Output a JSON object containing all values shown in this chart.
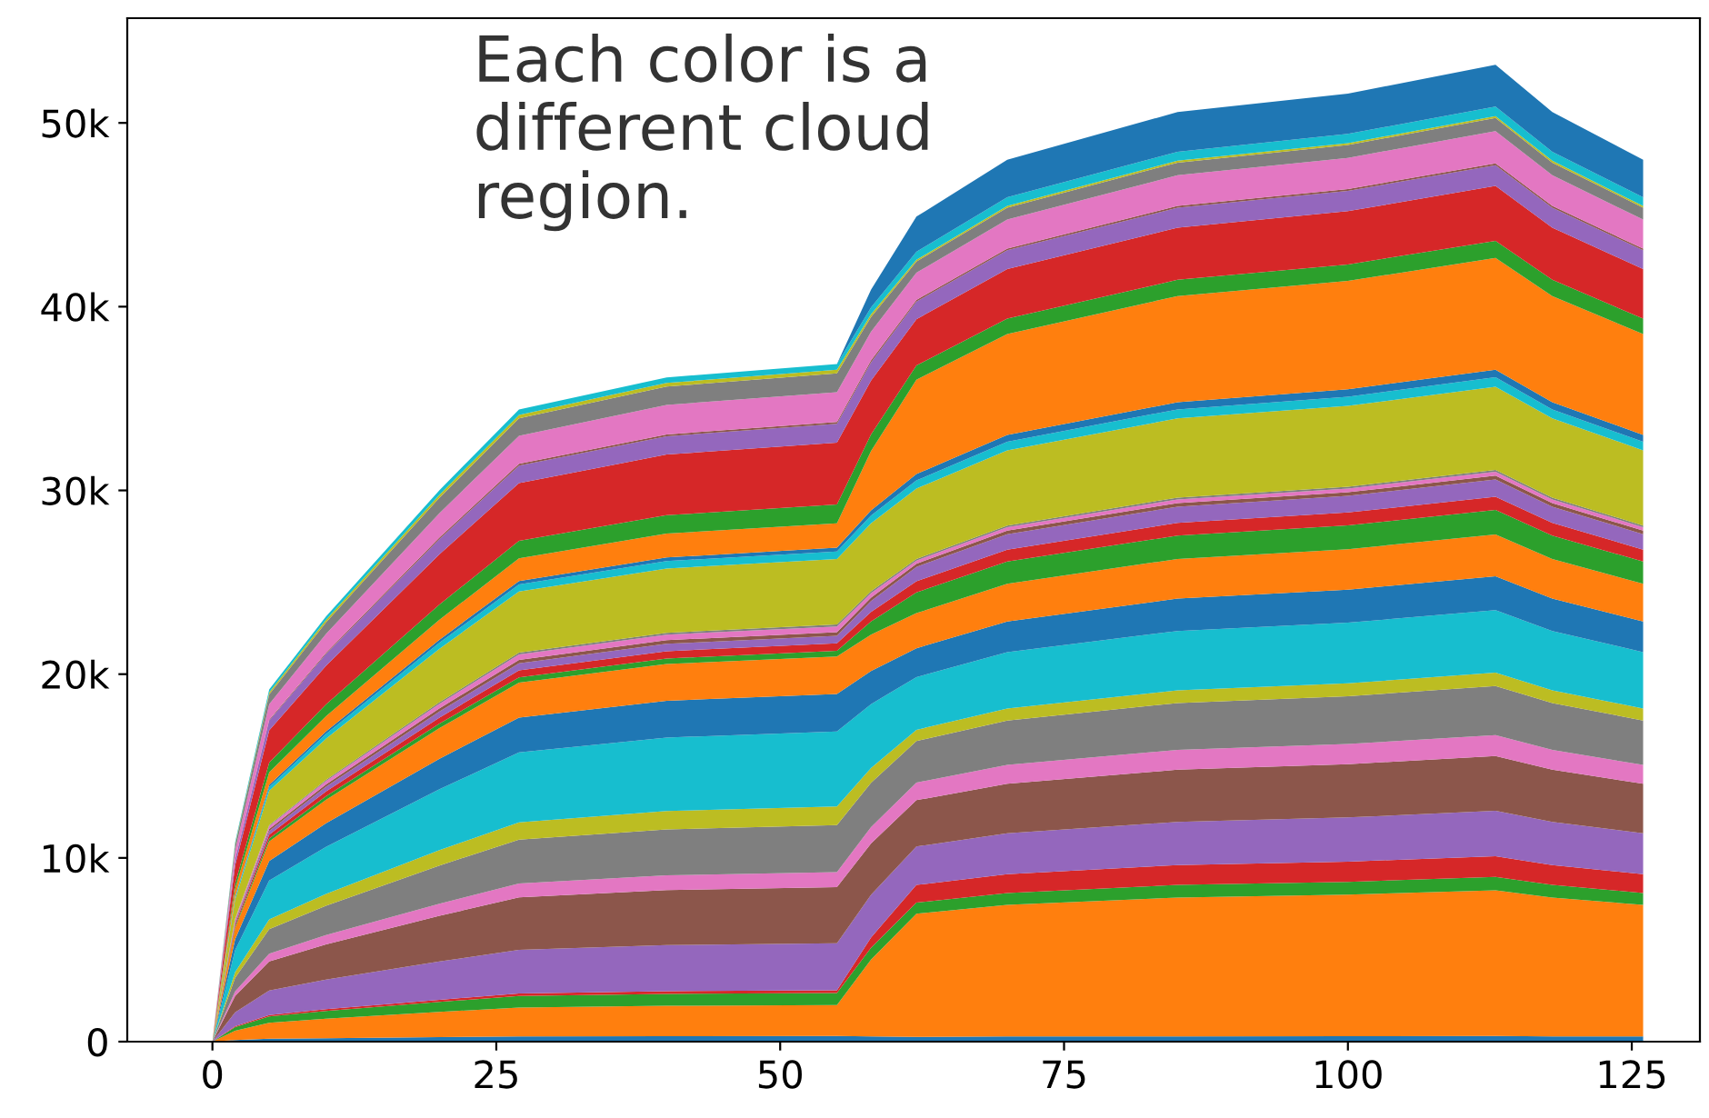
{
  "chart_data": {
    "type": "area",
    "stacked": true,
    "annotations": [
      "Each color is a\ndifferent cloud\nregion."
    ],
    "x": [
      0,
      2,
      5,
      10,
      20,
      27,
      40,
      55,
      58,
      62,
      70,
      85,
      100,
      113,
      118,
      126
    ],
    "xlim": [
      -7.5,
      131
    ],
    "xticks": [
      0,
      25,
      50,
      75,
      100,
      125
    ],
    "ylim": [
      0,
      55700
    ],
    "yticks": [
      {
        "value": 0,
        "label": "0"
      },
      {
        "value": 10000,
        "label": "10k"
      },
      {
        "value": 20000,
        "label": "20k"
      },
      {
        "value": 30000,
        "label": "30k"
      },
      {
        "value": 40000,
        "label": "40k"
      },
      {
        "value": 50000,
        "label": "50k"
      }
    ],
    "grid": false,
    "series": [
      {
        "color": "#1f77b4",
        "values": [
          0,
          90,
          160,
          190,
          250,
          290,
          300,
          310,
          280,
          260,
          280,
          290,
          300,
          310,
          290,
          280
        ]
      },
      {
        "color": "#ff7f0e",
        "values": [
          0,
          500,
          870,
          1060,
          1370,
          1570,
          1650,
          1680,
          4190,
          6700,
          7160,
          7550,
          7700,
          7930,
          7550,
          7160
        ]
      },
      {
        "color": "#2ca02c",
        "values": [
          0,
          200,
          340,
          420,
          540,
          620,
          650,
          660,
          640,
          610,
          650,
          690,
          700,
          720,
          690,
          650
        ]
      },
      {
        "color": "#d62728",
        "values": [
          0,
          50,
          80,
          100,
          120,
          140,
          150,
          150,
          560,
          960,
          1020,
          1080,
          1100,
          1130,
          1080,
          1020
        ]
      },
      {
        "color": "#9467bd",
        "values": [
          0,
          750,
          1330,
          1600,
          2080,
          2380,
          2500,
          2550,
          2320,
          2090,
          2230,
          2350,
          2400,
          2470,
          2350,
          2230
        ]
      },
      {
        "color": "#8c564b",
        "values": [
          0,
          900,
          1590,
          1920,
          2490,
          2850,
          3000,
          3060,
          2790,
          2520,
          2700,
          2840,
          2900,
          2990,
          2840,
          2700
        ]
      },
      {
        "color": "#e377c2",
        "values": [
          0,
          240,
          420,
          510,
          660,
          760,
          800,
          820,
          890,
          960,
          1020,
          1080,
          1100,
          1130,
          1080,
          1020
        ]
      },
      {
        "color": "#7f7f7f",
        "values": [
          0,
          750,
          1330,
          1600,
          2080,
          2380,
          2500,
          2550,
          2410,
          2260,
          2420,
          2550,
          2600,
          2680,
          2550,
          2420
        ]
      },
      {
        "color": "#bcbd22",
        "values": [
          0,
          300,
          530,
          640,
          830,
          950,
          1000,
          1020,
          810,
          610,
          650,
          690,
          700,
          720,
          690,
          650
        ]
      },
      {
        "color": "#17becf",
        "values": [
          0,
          1200,
          2120,
          2560,
          3320,
          3800,
          4000,
          4080,
          3480,
          2870,
          3070,
          3230,
          3300,
          3400,
          3230,
          3070
        ]
      },
      {
        "color": "#1f77b4",
        "values": [
          0,
          600,
          1060,
          1280,
          1660,
          1900,
          2000,
          2040,
          1800,
          1570,
          1670,
          1760,
          1800,
          1850,
          1760,
          1670
        ]
      },
      {
        "color": "#ff7f0e",
        "values": [
          0,
          600,
          1060,
          1280,
          1660,
          1900,
          2000,
          2040,
          1980,
          1910,
          2050,
          2160,
          2200,
          2270,
          2160,
          2050
        ]
      },
      {
        "color": "#2ca02c",
        "values": [
          0,
          90,
          160,
          190,
          250,
          290,
          300,
          310,
          720,
          1130,
          1210,
          1270,
          1300,
          1340,
          1270,
          1210
        ]
      },
      {
        "color": "#d62728",
        "values": [
          0,
          120,
          210,
          260,
          330,
          380,
          400,
          410,
          510,
          610,
          650,
          690,
          700,
          720,
          690,
          650
        ]
      },
      {
        "color": "#9467bd",
        "values": [
          0,
          120,
          210,
          260,
          330,
          380,
          400,
          410,
          600,
          780,
          840,
          880,
          900,
          930,
          880,
          840
        ]
      },
      {
        "color": "#8c564b",
        "values": [
          0,
          60,
          110,
          130,
          170,
          190,
          200,
          200,
          190,
          170,
          190,
          200,
          200,
          210,
          200,
          190
        ]
      },
      {
        "color": "#e377c2",
        "values": [
          0,
          90,
          160,
          190,
          250,
          290,
          300,
          310,
          240,
          170,
          190,
          200,
          200,
          210,
          200,
          190
        ]
      },
      {
        "color": "#7f7f7f",
        "values": [
          0,
          30,
          50,
          60,
          80,
          100,
          100,
          100,
          100,
          90,
          90,
          100,
          100,
          100,
          100,
          90
        ]
      },
      {
        "color": "#bcbd22",
        "values": [
          0,
          1050,
          1860,
          2240,
          2910,
          3330,
          3500,
          3570,
          3700,
          3830,
          4090,
          4310,
          4400,
          4530,
          4310,
          4090
        ]
      },
      {
        "color": "#17becf",
        "values": [
          0,
          120,
          210,
          260,
          330,
          380,
          400,
          410,
          420,
          440,
          470,
          490,
          500,
          520,
          490,
          470
        ]
      },
      {
        "color": "#1f77b4",
        "values": [
          0,
          60,
          110,
          130,
          170,
          190,
          200,
          200,
          280,
          350,
          370,
          390,
          400,
          410,
          390,
          370
        ]
      },
      {
        "color": "#ff7f0e",
        "values": [
          0,
          390,
          690,
          830,
          1080,
          1240,
          1300,
          1330,
          3230,
          5130,
          5490,
          5780,
          5900,
          6080,
          5780,
          5490
        ]
      },
      {
        "color": "#2ca02c",
        "values": [
          0,
          300,
          530,
          640,
          830,
          950,
          1000,
          1020,
          900,
          780,
          840,
          880,
          900,
          930,
          880,
          840
        ]
      },
      {
        "color": "#d62728",
        "values": [
          0,
          990,
          1750,
          2110,
          2740,
          3140,
          3300,
          3370,
          2940,
          2520,
          2700,
          2840,
          2900,
          2990,
          2840,
          2700
        ]
      },
      {
        "color": "#9467bd",
        "values": [
          0,
          300,
          530,
          640,
          830,
          950,
          1000,
          1020,
          990,
          960,
          1020,
          1080,
          1100,
          1130,
          1080,
          1020
        ]
      },
      {
        "color": "#8c564b",
        "values": [
          0,
          30,
          50,
          60,
          80,
          100,
          100,
          100,
          100,
          90,
          90,
          100,
          100,
          100,
          100,
          90
        ]
      },
      {
        "color": "#e377c2",
        "values": [
          0,
          480,
          850,
          1020,
          1330,
          1520,
          1600,
          1630,
          1560,
          1480,
          1580,
          1670,
          1700,
          1750,
          1670,
          1580
        ]
      },
      {
        "color": "#7f7f7f",
        "values": [
          0,
          300,
          530,
          640,
          830,
          950,
          1000,
          1020,
          810,
          610,
          650,
          690,
          700,
          720,
          690,
          650
        ]
      },
      {
        "color": "#bcbd22",
        "values": [
          0,
          60,
          110,
          130,
          170,
          190,
          200,
          200,
          150,
          90,
          90,
          100,
          100,
          100,
          100,
          90
        ]
      },
      {
        "color": "#17becf",
        "values": [
          0,
          90,
          160,
          190,
          250,
          290,
          300,
          310,
          370,
          440,
          470,
          490,
          500,
          520,
          490,
          470
        ]
      },
      {
        "color": "#1f77b4",
        "values": [
          0,
          0,
          0,
          0,
          0,
          0,
          0,
          0,
          960,
          1910,
          2050,
          2160,
          2200,
          2270,
          2160,
          2050
        ]
      }
    ]
  }
}
